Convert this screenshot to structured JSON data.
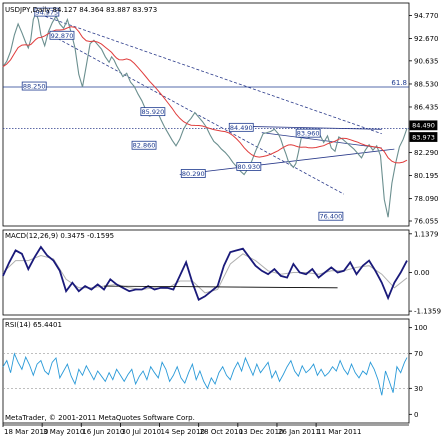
{
  "chart_data": [
    {
      "type": "line",
      "panel": "price",
      "title": "USDJPY,Daily  84.127 84.364 83.887 83.973",
      "y_ticks": [
        "94.770",
        "92.670",
        "90.635",
        "88.530",
        "86.435",
        "82.290",
        "80.195",
        "78.090",
        "76.055"
      ],
      "y_range": [
        75.6,
        95.9
      ],
      "current_price_labels": [
        {
          "text": "84.490",
          "value": 84.49
        },
        {
          "text": "83.973",
          "value": 83.973
        }
      ],
      "fib_label": "61.8",
      "fib_level": 88.25,
      "colors": {
        "price": "#6b8f8f",
        "ma": "#e03c3c",
        "trendline": "#2a3a8a",
        "level": "#1d3a8f",
        "label_box": "#1d3a8f"
      },
      "series": [
        {
          "x": [
            0,
            3,
            6,
            9,
            12,
            15,
            18,
            20,
            22,
            24,
            26,
            28,
            30,
            33,
            36,
            39,
            42,
            45,
            48,
            51,
            54,
            57,
            60,
            63,
            66,
            69,
            72,
            75,
            78,
            81,
            84,
            86,
            88,
            90,
            92,
            95,
            98,
            101,
            104,
            107,
            110,
            113,
            116,
            119,
            122,
            125,
            128,
            131,
            134,
            137,
            140,
            143,
            146,
            149,
            152,
            155,
            158,
            161,
            164,
            167,
            170,
            173,
            176,
            179,
            182,
            185,
            188,
            191,
            194,
            197,
            200,
            203,
            206,
            209,
            212,
            215,
            218,
            220,
            222,
            224,
            226,
            228,
            230,
            232,
            234,
            236,
            238,
            240,
            242,
            245,
            248,
            251,
            254,
            257,
            260,
            263,
            266,
            269,
            272,
            275,
            278,
            281,
            284,
            287,
            290,
            293,
            296,
            299,
            302,
            305,
            308,
            311,
            314,
            317,
            320
          ],
          "values": [
            90.1,
            90.6,
            91.5,
            93.0,
            94.0,
            93.2,
            92.3,
            91.8,
            92.6,
            94.4,
            94.98,
            94.4,
            93.0,
            92.0,
            93.3,
            94.1,
            94.7,
            94.0,
            93.6,
            94.4,
            93.2,
            91.8,
            89.4,
            88.25,
            90.2,
            92.2,
            92.5,
            92.1,
            91.7,
            91.0,
            90.5,
            91.0,
            90.7,
            90.2,
            89.8,
            89.2,
            89.5,
            88.7,
            88.3,
            87.6,
            87.0,
            86.2,
            85.6,
            85.7,
            86.1,
            85.3,
            84.6,
            84.0,
            83.4,
            82.9,
            83.5,
            84.4,
            85.0,
            85.4,
            85.92,
            85.5,
            85.1,
            84.6,
            83.9,
            83.3,
            83.0,
            82.6,
            82.3,
            81.9,
            81.4,
            81.0,
            80.6,
            80.29,
            80.8,
            81.5,
            82.4,
            83.2,
            84.0,
            84.1,
            84.2,
            84.4,
            84.0,
            83.5,
            82.8,
            82.2,
            81.5,
            81.2,
            80.93,
            81.3,
            82.3,
            83.5,
            84.4,
            84.1,
            83.6,
            83.9,
            84.0,
            83.9,
            83.2,
            83.8,
            82.7,
            82.4,
            83.7,
            83.5,
            83.2,
            82.9,
            82.6,
            82.2,
            81.8,
            82.5,
            83.0,
            82.5,
            82.9,
            82.0,
            78.0,
            76.4,
            79.5,
            81.3,
            82.8,
            83.5,
            84.49
          ]
        }
      ],
      "labels": [
        {
          "text": "94.975",
          "x": 26,
          "y": 94.98,
          "style": "box"
        },
        {
          "text": "92.870",
          "x": 38,
          "y": 92.87,
          "style": "box"
        },
        {
          "text": "88.250",
          "x": 16,
          "y": 88.25,
          "style": "box"
        },
        {
          "text": "85.920",
          "x": 110,
          "y": 85.92,
          "style": "box"
        },
        {
          "text": "82.860",
          "x": 103,
          "y": 82.86,
          "style": "box"
        },
        {
          "text": "80.290",
          "x": 142,
          "y": 80.29,
          "style": "box"
        },
        {
          "text": "84.490",
          "x": 180,
          "y": 84.49,
          "style": "box"
        },
        {
          "text": "83.960",
          "x": 233,
          "y": 83.96,
          "style": "box"
        },
        {
          "text": "80.930",
          "x": 186,
          "y": 80.93,
          "style": "box"
        },
        {
          "text": "76.400",
          "x": 251,
          "y": 76.4,
          "style": "box"
        }
      ]
    },
    {
      "type": "line",
      "panel": "macd",
      "title": "MACD(12,26,9) 0.3475 -0.1595",
      "y_ticks": [
        "1.1379",
        "0.00",
        "-1.1359"
      ],
      "y_range": [
        -1.1359,
        1.1379
      ],
      "series": [
        {
          "name": "MACD",
          "x": [
            0,
            5,
            10,
            15,
            20,
            25,
            30,
            35,
            40,
            45,
            50,
            55,
            60,
            65,
            70,
            75,
            80,
            85,
            90,
            95,
            100,
            105,
            110,
            115,
            120,
            125,
            130,
            135,
            140,
            145,
            150,
            155,
            160,
            165,
            170,
            175,
            180,
            185,
            190,
            195,
            200,
            205,
            210,
            215,
            220,
            225,
            230,
            235,
            240,
            245,
            250,
            255,
            260,
            265,
            270,
            275,
            280,
            285,
            290,
            295,
            300,
            305,
            310,
            315,
            320
          ],
          "values": [
            -0.1,
            0.3,
            0.65,
            0.55,
            0.1,
            0.45,
            0.75,
            0.5,
            0.35,
            0.05,
            -0.55,
            -0.3,
            -0.55,
            -0.4,
            -0.5,
            -0.35,
            -0.5,
            -0.2,
            -0.35,
            -0.45,
            -0.55,
            -0.5,
            -0.5,
            -0.4,
            -0.5,
            -0.45,
            -0.45,
            -0.5,
            -0.1,
            0.3,
            -0.3,
            -0.8,
            -0.7,
            -0.55,
            -0.4,
            0.2,
            0.6,
            0.65,
            0.7,
            0.45,
            0.2,
            0.05,
            -0.05,
            0.1,
            -0.1,
            -0.15,
            0.25,
            0.0,
            -0.05,
            0.1,
            -0.15,
            0.0,
            0.15,
            0.0,
            0.05,
            0.3,
            -0.05,
            0.2,
            0.35,
            0.05,
            -0.3,
            -0.75,
            -0.3,
            0.0,
            0.35
          ]
        },
        {
          "name": "Signal",
          "x": [
            0,
            10,
            20,
            30,
            40,
            50,
            60,
            70,
            80,
            90,
            100,
            110,
            120,
            130,
            140,
            150,
            160,
            170,
            180,
            190,
            200,
            210,
            220,
            230,
            240,
            250,
            260,
            270,
            280,
            290,
            300,
            310,
            320
          ],
          "values": [
            0.0,
            0.35,
            0.35,
            0.5,
            0.4,
            -0.2,
            -0.45,
            -0.45,
            -0.4,
            -0.35,
            -0.45,
            -0.5,
            -0.45,
            -0.47,
            -0.25,
            -0.25,
            -0.6,
            -0.5,
            0.25,
            0.55,
            0.35,
            0.05,
            -0.05,
            0.0,
            0.0,
            -0.05,
            0.05,
            0.05,
            0.15,
            0.2,
            -0.05,
            -0.45,
            -0.16
          ]
        }
      ],
      "trendline": [
        [
          80,
          -0.4
        ],
        [
          265,
          -0.45
        ]
      ]
    },
    {
      "type": "line",
      "panel": "rsi",
      "title": "RSI(14) 65.4401",
      "y_ticks": [
        "100",
        "70",
        "30",
        "0"
      ],
      "y_range": [
        0,
        100
      ],
      "series": [
        {
          "name": "RSI",
          "x": [
            0,
            3,
            6,
            9,
            12,
            15,
            18,
            21,
            24,
            27,
            30,
            33,
            36,
            39,
            42,
            45,
            48,
            51,
            54,
            57,
            60,
            63,
            66,
            69,
            72,
            75,
            78,
            81,
            84,
            87,
            90,
            93,
            96,
            99,
            102,
            105,
            108,
            111,
            114,
            117,
            120,
            123,
            126,
            129,
            132,
            135,
            138,
            141,
            144,
            147,
            150,
            153,
            156,
            159,
            162,
            165,
            168,
            171,
            174,
            177,
            180,
            183,
            186,
            189,
            192,
            195,
            198,
            201,
            204,
            207,
            210,
            213,
            216,
            219,
            222,
            225,
            228,
            231,
            234,
            237,
            240,
            243,
            246,
            249,
            252,
            255,
            258,
            261,
            264,
            267,
            270,
            273,
            276,
            279,
            282,
            285,
            288,
            291,
            294,
            297,
            300,
            303,
            306,
            309,
            312,
            315,
            318,
            320
          ],
          "values": [
            55,
            62,
            48,
            70,
            60,
            52,
            66,
            57,
            45,
            58,
            62,
            50,
            46,
            60,
            65,
            42,
            50,
            58,
            44,
            35,
            52,
            45,
            56,
            48,
            40,
            50,
            44,
            38,
            48,
            40,
            52,
            45,
            38,
            46,
            52,
            35,
            44,
            50,
            40,
            55,
            48,
            42,
            60,
            52,
            38,
            45,
            55,
            42,
            36,
            48,
            58,
            40,
            50,
            38,
            30,
            42,
            35,
            48,
            55,
            45,
            40,
            52,
            60,
            50,
            65,
            55,
            45,
            58,
            48,
            54,
            60,
            42,
            50,
            38,
            46,
            55,
            62,
            50,
            44,
            56,
            48,
            52,
            58,
            45,
            52,
            44,
            48,
            55,
            50,
            62,
            52,
            46,
            58,
            48,
            42,
            50,
            46,
            60,
            52,
            40,
            22,
            50,
            38,
            25,
            55,
            48,
            60,
            65.44
          ]
        }
      ]
    }
  ],
  "x_axis": {
    "labels": [
      "18 Mar 2010",
      "3 May 2010",
      "16 Jun 2010",
      "30 Jul 2010",
      "14 Sep 2010",
      "28 Oct 2010",
      "13 Dec 2010",
      "26 Jan 2011",
      "11 Mar 2011"
    ],
    "positions": [
      0,
      31,
      62,
      93,
      124,
      155,
      186,
      217,
      248
    ]
  },
  "watermark": "MetaTrader, © 2001-2011 MetaQuotes Software Corp."
}
